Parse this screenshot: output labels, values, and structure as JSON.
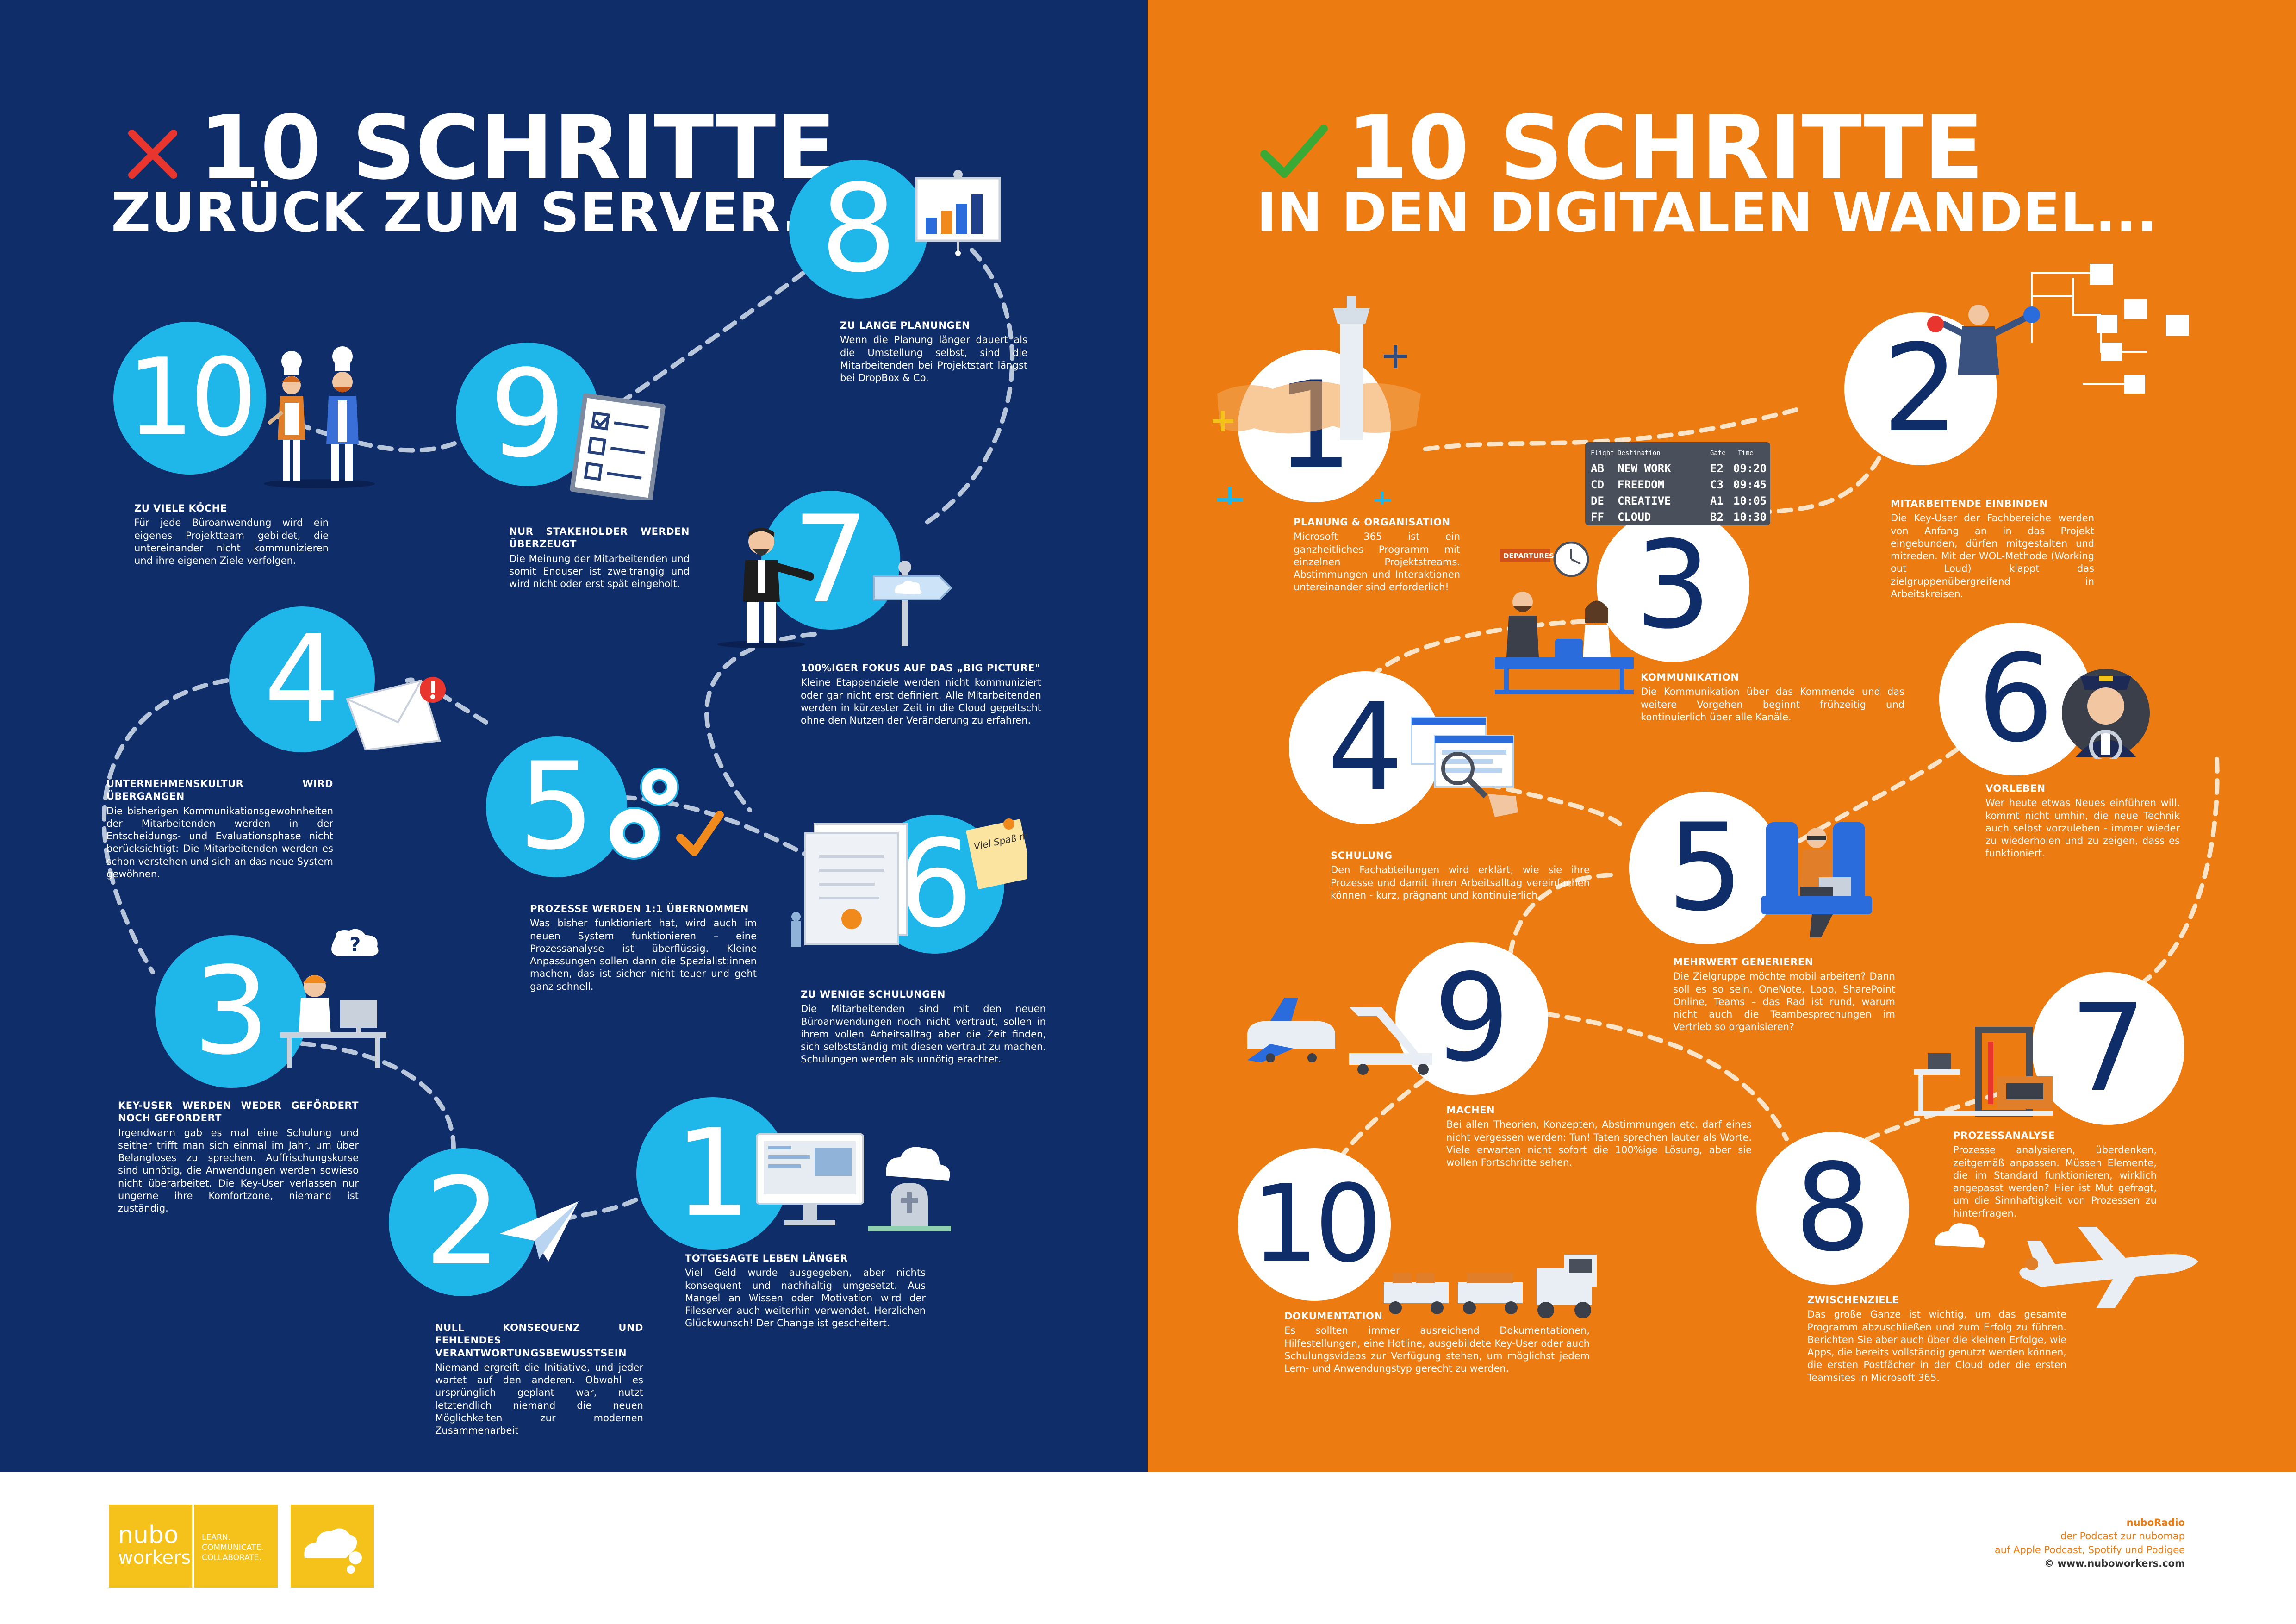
{
  "left": {
    "title_line1": "10 SCHRITTE",
    "title_line2": "ZURÜCK ZUM SERVER...",
    "steps": [
      {
        "num": "10",
        "head": "ZU VIELE KÖCHE",
        "body": "Für jede Büroanwendung wird ein eigenes Projektteam gebildet, die untereinander nicht kommunizieren und ihre eigenen Ziele verfolgen."
      },
      {
        "num": "9",
        "head": "NUR STAKEHOLDER WERDEN ÜBERZEUGT",
        "body": "Die Meinung der Mitarbeitenden und somit Enduser ist zweitrangig und wird nicht oder erst spät eingeholt."
      },
      {
        "num": "8",
        "head": "ZU LANGE PLANUNGEN",
        "body": "Wenn die Planung länger dauert als die Umstellung selbst, sind die Mitarbeitenden bei Projektstart längst bei DropBox & Co."
      },
      {
        "num": "7",
        "head": "100%IGER FOKUS AUF DAS „BIG PICTURE\"",
        "body": "Kleine Etappenziele werden nicht kommuniziert oder gar nicht erst definiert. Alle Mitarbeitenden werden in kürzester Zeit in die Cloud gepeitscht ohne den Nutzen der Veränderung zu erfahren."
      },
      {
        "num": "4",
        "head": "UNTERNEHMENSKULTUR WIRD ÜBERGANGEN",
        "body": "Die bisherigen Kommunikationsgewohnheiten der Mitarbeitenden werden in der Entscheidungs- und Evaluationsphase nicht berücksichtigt: Die Mitarbeitenden werden es schon verstehen und sich an das neue System gewöhnen."
      },
      {
        "num": "5",
        "head": "PROZESSE WERDEN 1:1 ÜBERNOMMEN",
        "body": "Was bisher funktioniert hat, wird auch im neuen System funktionieren – eine Prozessanalyse ist überflüssig. Kleine Anpassungen sollen dann die Spezialist:innen machen, das ist sicher nicht teuer und geht ganz schnell."
      },
      {
        "num": "6",
        "head": "ZU WENIGE SCHULUNGEN",
        "body": "Die Mitarbeitenden sind mit den neuen Büroanwendungen noch nicht vertraut, sollen in ihrem vollen Arbeitsalltag aber die Zeit finden, sich selbstständig mit diesen vertraut zu machen. Schulungen werden als unnötig erachtet."
      },
      {
        "num": "3",
        "head": "KEY-USER WERDEN WEDER GEFÖRDERT NOCH GEFORDERT",
        "body": "Irgendwann gab es mal eine Schulung und seither trifft man sich einmal im Jahr, um über Belangloses zu sprechen. Auffrischungskurse sind unnötig, die Anwendungen werden sowieso nicht überarbeitet. Die Key-User verlassen nur ungerne ihre Komfortzone, niemand ist zuständig."
      },
      {
        "num": "2",
        "head": "NULL KONSEQUENZ UND FEHLENDES VERANTWORTUNGSBEWUSSTSEIN",
        "body": "Niemand ergreift die Initiative, und jeder wartet auf den anderen. Obwohl es ursprünglich geplant war, nutzt letztendlich niemand die neuen Möglichkeiten zur modernen Zusammenarbeit"
      },
      {
        "num": "1",
        "head": "TOTGESAGTE LEBEN LÄNGER",
        "body": "Viel Geld wurde ausgegeben, aber nichts konsequent und nachhaltig umgesetzt. Aus Mangel an Wissen oder Motivation wird der Fileserver auch weiterhin verwendet. Herzlichen Glückwunsch! Der Change ist gescheitert."
      }
    ]
  },
  "right": {
    "title_line1": "10 SCHRITTE",
    "title_line2": "IN DEN DIGITALEN WANDEL...",
    "steps": [
      {
        "num": "1",
        "head": "PLANUNG & ORGANISATION",
        "body": "Microsoft 365 ist ein ganzheitliches Programm mit einzelnen Projektstreams. Abstimmungen und Interaktionen untereinander sind erforderlich!"
      },
      {
        "num": "2",
        "head": "MITARBEITENDE EINBINDEN",
        "body": "Die Key-User der Fachbereiche werden von Anfang an in das Projekt eingebunden, dürfen mitgestalten und mitreden. Mit der WOL-Methode (Working out Loud) klappt das zielgruppenübergreifend in Arbeitskreisen."
      },
      {
        "num": "3",
        "head": "KOMMUNIKATION",
        "body": "Die Kommunikation über das Kommende und das weitere Vorgehen beginnt frühzeitig und kontinuierlich über alle Kanäle."
      },
      {
        "num": "4",
        "head": "SCHULUNG",
        "body": "Den Fachabteilungen wird erklärt, wie sie ihre Prozesse und damit ihren Arbeitsalltag vereinfachen können - kurz, prägnant und kontinuierlich."
      },
      {
        "num": "6",
        "head": "VORLEBEN",
        "body": "Wer heute etwas Neues einführen will, kommt nicht umhin, die neue Technik auch selbst vorzuleben - immer wieder zu wiederholen und zu zeigen, dass es funktioniert."
      },
      {
        "num": "5",
        "head": "MEHRWERT GENERIEREN",
        "body": "Die Zielgruppe möchte mobil arbeiten? Dann soll es so sein. OneNote, Loop, SharePoint Online, Teams – das Rad ist rund, warum nicht auch die Teambesprechungen im Vertrieb so organisieren?"
      },
      {
        "num": "9",
        "head": "MACHEN",
        "body": "Bei allen Theorien, Konzepten, Abstimmungen etc. darf eines nicht vergessen werden: Tun! Taten sprechen lauter als Worte. Viele erwarten nicht sofort die 100%ige Lösung, aber sie wollen Fortschritte sehen."
      },
      {
        "num": "7",
        "head": "PROZESSANALYSE",
        "body": "Prozesse analysieren, überdenken, zeitgemäß anpassen. Müssen Elemente, die im Standard funktionieren, wirklich angepasst werden? Hier ist Mut gefragt, um die Sinnhaftigkeit von Prozessen zu hinterfragen."
      },
      {
        "num": "10",
        "head": "DOKUMENTATION",
        "body": "Es sollten immer ausreichend Dokumentationen, Hilfestellungen, eine Hotline, ausgebildete Key-User oder auch Schulungsvideos zur Verfügung stehen, um möglichst jedem Lern- und Anwendungstyp gerecht zu werden."
      },
      {
        "num": "8",
        "head": "ZWISCHENZIELE",
        "body": "Das große Ganze ist wichtig, um das gesamte Programm abzuschließen und zum Erfolg zu führen. Berichten Sie aber auch über die kleinen Erfolge, wie Apps, die bereits vollständig genutzt werden können, die ersten Postfächer in der Cloud oder die ersten Teamsites in Microsoft 365."
      }
    ],
    "board": {
      "headers": [
        "Flight",
        "Destination",
        "Gate",
        "Time"
      ],
      "rows": [
        [
          "AB",
          "NEW WORK",
          "E2",
          "09:20"
        ],
        [
          "CD",
          "FREEDOM",
          "C3",
          "09:45"
        ],
        [
          "DE",
          "CREATIVE",
          "A1",
          "10:05"
        ],
        [
          "FF",
          "CLOUD",
          "B2",
          "10:30"
        ]
      ]
    },
    "sign_text": "DEPARTURES",
    "note_text": "Viel Spaß mit dem Update!"
  },
  "footer": {
    "logo_line1": "nubo",
    "logo_line2": "workers",
    "tagline": [
      "LEARN.",
      "COMMUNICATE.",
      "COLLABORATE."
    ],
    "brand": "nuboRadio",
    "line1": "der Podcast zur nubomap",
    "line2": "auf Apple Podcast, Spotify und Podigee",
    "copyright": "© www.nuboworkers.com"
  },
  "colors": {
    "navy": "#0f2d69",
    "orange": "#ec7c12",
    "cyan": "#1fb6e9",
    "red_x": "#e8362f",
    "green_check": "#3aa935",
    "logo_yellow": "#f5c21b"
  }
}
